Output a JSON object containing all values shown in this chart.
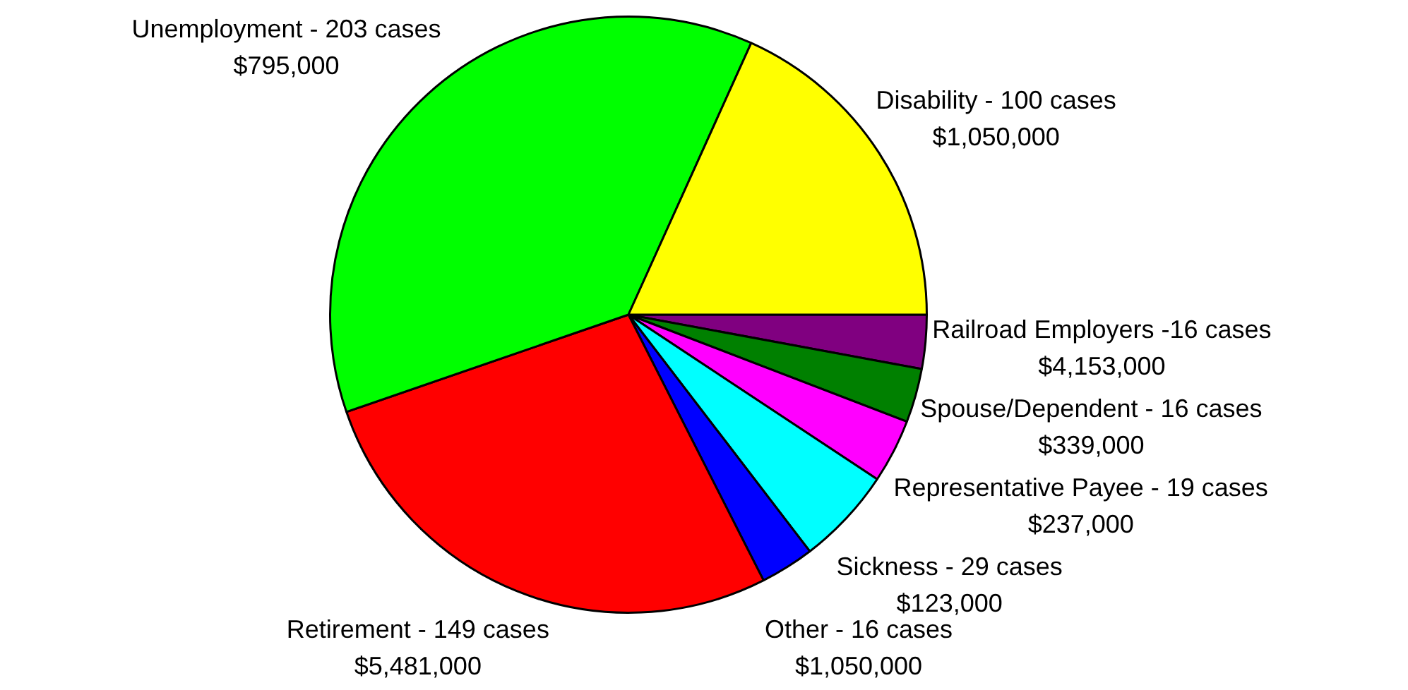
{
  "chart_data": {
    "type": "pie",
    "categories": [
      "Railroad Employers -16 cases",
      "Spouse/Dependent - 16 cases",
      "Representative Payee - 19 cases",
      "Sickness - 29 cases",
      "Other - 16 cases",
      "Retirement - 149 cases",
      "Unemployment - 203 cases",
      "Disability - 100 cases"
    ],
    "values": [
      2.92,
      2.92,
      3.47,
      5.29,
      2.92,
      27.19,
      37.04,
      18.25
    ],
    "annotations": [
      "$4,153,000",
      "$339,000",
      "$237,000",
      "$123,000",
      "$1,050,000",
      "$5,481,000",
      "$795,000",
      "$1,050,000"
    ],
    "colors": [
      "#800080",
      "#008000",
      "#ff00ff",
      "#00ffff",
      "#0000ff",
      "#ff0000",
      "#00ff00",
      "#ffff00"
    ],
    "legend": false
  }
}
